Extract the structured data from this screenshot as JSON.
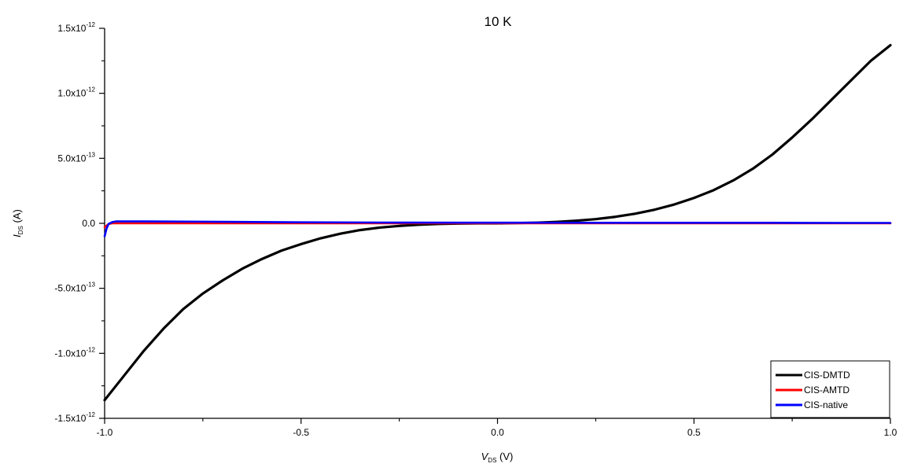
{
  "chart_data": {
    "type": "line",
    "title": "10 K",
    "xlabel": {
      "main": "V",
      "sub": "DS",
      "unit": "(V)"
    },
    "ylabel": {
      "main": "I",
      "sub": "DS",
      "unit": "(A)"
    },
    "xlim": [
      -1.0,
      1.0
    ],
    "ylim": [
      -1.5e-12,
      1.5e-12
    ],
    "x_ticks": [
      {
        "value": -1.0,
        "label": "-1.0"
      },
      {
        "value": -0.5,
        "label": "-0.5"
      },
      {
        "value": 0.0,
        "label": "0.0"
      },
      {
        "value": 0.5,
        "label": "0.5"
      },
      {
        "value": 1.0,
        "label": "1.0"
      }
    ],
    "y_ticks": [
      {
        "value": 1.5e-12,
        "mant": "1.5x10",
        "exp": "-12"
      },
      {
        "value": 1e-12,
        "mant": "1.0x10",
        "exp": "-12"
      },
      {
        "value": 5e-13,
        "mant": "5.0x10",
        "exp": "-13"
      },
      {
        "value": 0.0,
        "mant": "0.0",
        "exp": ""
      },
      {
        "value": -5e-13,
        "mant": "-5.0x10",
        "exp": "-13"
      },
      {
        "value": -1e-12,
        "mant": "-1.0x10",
        "exp": "-12"
      },
      {
        "value": -1.5e-12,
        "mant": "-1.5x10",
        "exp": "-12"
      }
    ],
    "legend_position": "bottom-right",
    "grid": false,
    "series": [
      {
        "name": "CIS-DMTD",
        "color": "#000000",
        "x": [
          -1.0,
          -0.95,
          -0.9,
          -0.85,
          -0.8,
          -0.75,
          -0.7,
          -0.65,
          -0.6,
          -0.55,
          -0.5,
          -0.45,
          -0.4,
          -0.35,
          -0.3,
          -0.25,
          -0.2,
          -0.15,
          -0.1,
          -0.05,
          0.0,
          0.05,
          0.1,
          0.15,
          0.2,
          0.25,
          0.3,
          0.35,
          0.4,
          0.45,
          0.5,
          0.55,
          0.6,
          0.65,
          0.7,
          0.75,
          0.8,
          0.85,
          0.9,
          0.95,
          1.0
        ],
        "y": [
          -1.36e-12,
          -1.17e-12,
          -9.8e-13,
          -8.1e-13,
          -6.6e-13,
          -5.4e-13,
          -4.4e-13,
          -3.5e-13,
          -2.75e-13,
          -2.1e-13,
          -1.6e-13,
          -1.15e-13,
          -8e-14,
          -5.2e-14,
          -3.3e-14,
          -2e-14,
          -1.1e-14,
          -5e-15,
          -2e-15,
          0,
          0,
          2e-15,
          5e-15,
          1.1e-14,
          2e-14,
          3.2e-14,
          5e-14,
          7.4e-14,
          1.05e-13,
          1.45e-13,
          1.95e-13,
          2.55e-13,
          3.3e-13,
          4.2e-13,
          5.3e-13,
          6.6e-13,
          8e-13,
          9.5e-13,
          1.1e-12,
          1.25e-12,
          1.37e-12
        ]
      },
      {
        "name": "CIS-AMTD",
        "color": "#ff0000",
        "x": [
          -1.0,
          -0.99,
          -0.98,
          -0.5,
          0.0,
          0.5,
          1.0
        ],
        "y": [
          -3e-14,
          -5e-15,
          0,
          0,
          0,
          0,
          0
        ]
      },
      {
        "name": "CIS-native",
        "color": "#0000ff",
        "x": [
          -1.0,
          -0.995,
          -0.99,
          -0.98,
          -0.97,
          -0.9,
          -0.7,
          -0.5,
          -0.3,
          -0.1,
          0.1,
          0.3,
          0.5,
          0.7,
          0.9,
          1.0
        ],
        "y": [
          -1e-13,
          -4e-14,
          -5e-15,
          1e-14,
          1.5e-14,
          1.5e-14,
          1.2e-14,
          8e-15,
          6e-15,
          5e-15,
          5e-15,
          4e-15,
          4e-15,
          4e-15,
          3e-15,
          3e-15
        ]
      }
    ]
  }
}
